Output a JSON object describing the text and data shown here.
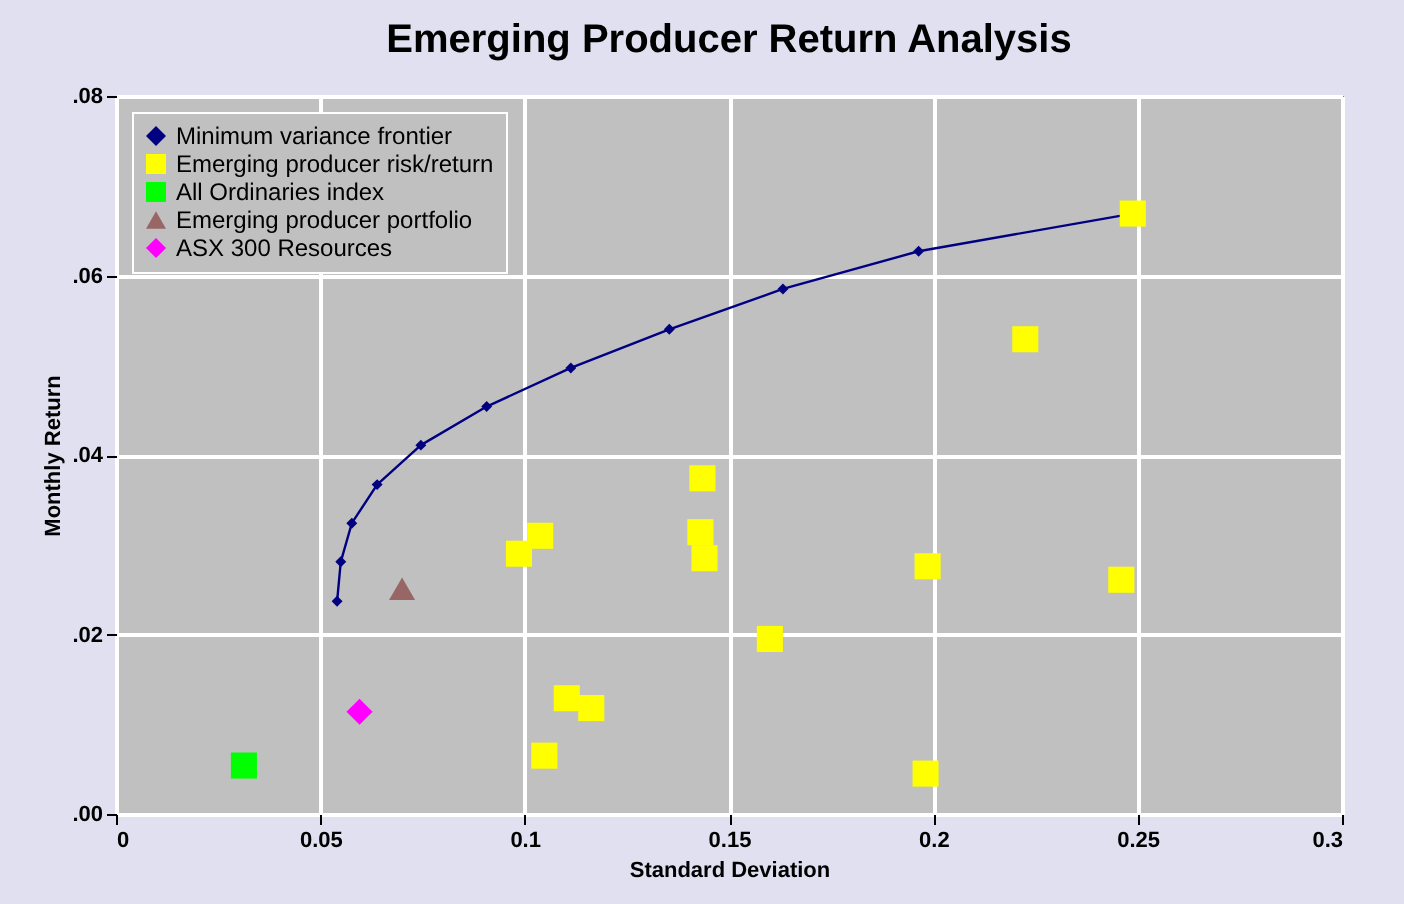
{
  "chart_data": {
    "type": "scatter",
    "title": "Emerging Producer Return Analysis",
    "xlabel": "Standard Deviation",
    "ylabel": "Monthly Return",
    "xlim": [
      0,
      0.3
    ],
    "xticks": [
      0,
      0.05,
      0.1,
      0.15,
      0.2,
      0.25,
      0.3
    ],
    "ylim": [
      0,
      0.08
    ],
    "yticks": [
      {
        "value": 0,
        "label": ".00"
      },
      {
        "value": 0.02,
        "label": ".02"
      },
      {
        "value": 0.04,
        "label": ".04"
      },
      {
        "value": 0.06,
        "label": ".06"
      },
      {
        "value": 0.08,
        "label": ".08"
      }
    ],
    "grid": true,
    "legend": "top left",
    "series": [
      {
        "name": "Minimum variance frontier",
        "type": "line",
        "marker": "diamond",
        "color": "#000080",
        "x": [
          0.0541,
          0.055,
          0.0577,
          0.0639,
          0.0746,
          0.0907,
          0.1113,
          0.1354,
          0.1632,
          0.1964,
          0.2488
        ],
        "values": [
          0.0237,
          0.0281,
          0.0324,
          0.0367,
          0.0411,
          0.0454,
          0.0497,
          0.054,
          0.0585,
          0.0627,
          0.0669
        ]
      },
      {
        "name": "Emerging producer risk/return",
        "marker": "square",
        "color": "#ffff00",
        "x": [
          0.1435,
          0.1038,
          0.0986,
          0.143,
          0.144,
          0.1103,
          0.1163,
          0.1048,
          0.2225,
          0.1986,
          0.246,
          0.16,
          0.1981,
          0.2488
        ],
        "values": [
          0.0374,
          0.031,
          0.029,
          0.0314,
          0.0285,
          0.0129,
          0.0118,
          0.0065,
          0.0529,
          0.0276,
          0.0261,
          0.0195,
          0.0045,
          0.0669
        ]
      },
      {
        "name": "All Ordinaries index",
        "marker": "square",
        "color": "#00ff00",
        "x": [
          0.0313
        ],
        "values": [
          0.0054
        ]
      },
      {
        "name": "Emerging producer portfolio",
        "marker": "triangle",
        "color": "#996666",
        "x": [
          0.07
        ],
        "values": [
          0.0251
        ]
      },
      {
        "name": "ASX 300 Resources",
        "marker": "diamond",
        "color": "#ff00ff",
        "x": [
          0.0596
        ],
        "values": [
          0.0114
        ]
      }
    ]
  }
}
